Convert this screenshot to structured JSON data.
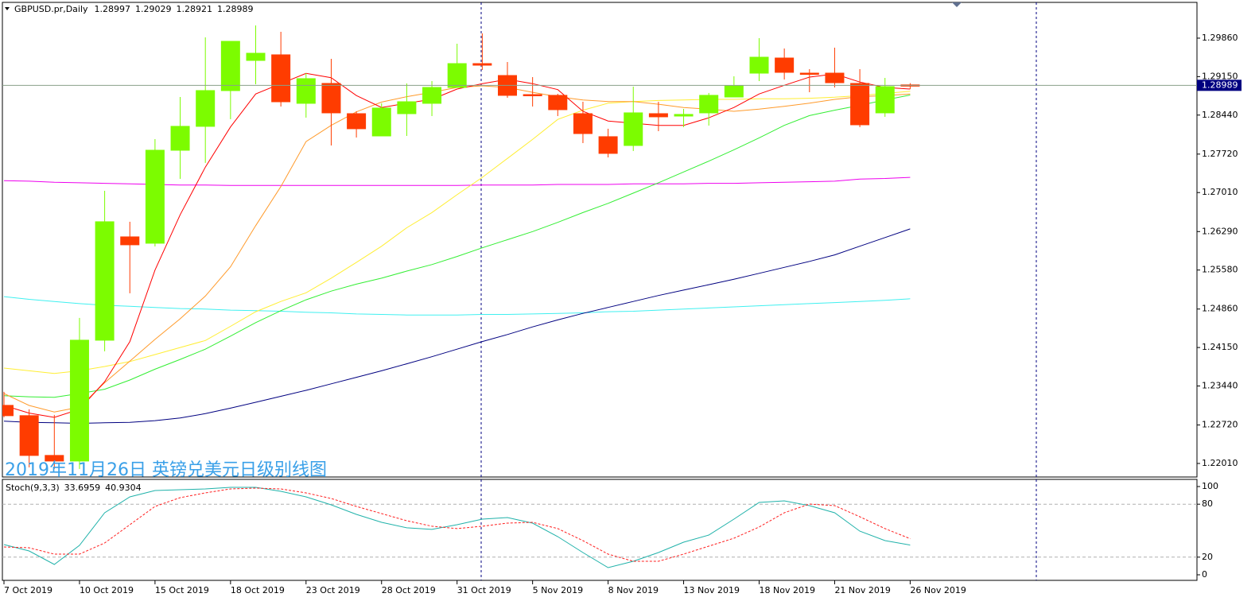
{
  "chart_data": [
    {
      "type": "candlestick",
      "title": "GBPUSD.pr,Daily",
      "annotation": "2019年11月26日 英镑兑美元日级别线图",
      "categories": [
        "7 Oct 2019",
        null,
        null,
        "10 Oct 2019",
        null,
        null,
        "15 Oct 2019",
        null,
        null,
        "18 Oct 2019",
        null,
        null,
        "23 Oct 2019",
        null,
        null,
        "28 Oct 2019",
        null,
        null,
        "31 Oct 2019",
        null,
        null,
        "5 Nov 2019",
        null,
        null,
        "8 Nov 2019",
        null,
        null,
        "13 Nov 2019",
        null,
        null,
        "18 Nov 2019",
        null,
        null,
        "21 Nov 2019",
        null,
        null,
        "26 Nov 2019"
      ],
      "open": [
        1.23082,
        1.22892,
        1.22158,
        1.22055,
        1.24285,
        1.26192,
        1.26075,
        1.27791,
        1.28232,
        1.28892,
        1.29449,
        1.29552,
        1.28657,
        1.29024,
        1.28466,
        1.28055,
        1.28466,
        1.28657,
        1.2895,
        1.2939,
        1.2917,
        1.28818,
        1.28804,
        1.28466,
        1.28041,
        1.27879,
        1.28466,
        1.28422,
        1.28481,
        1.28774,
        1.29214,
        1.29493,
        1.29214,
        1.29214,
        1.29024,
        1.28481,
        1.28997
      ],
      "high": [
        1.23332,
        1.23009,
        1.22906,
        1.24696,
        1.27043,
        1.26471,
        1.27997,
        1.28774,
        1.29874,
        1.29801,
        1.30095,
        1.29977,
        1.29214,
        1.29478,
        1.2851,
        1.28657,
        1.29024,
        1.29068,
        1.29757,
        1.29948,
        1.2942,
        1.29141,
        1.28833,
        1.28686,
        1.28188,
        1.28965,
        1.28686,
        1.28554,
        1.28848,
        1.29156,
        1.2986,
        1.29669,
        1.29288,
        1.29684,
        1.29288,
        1.29126,
        1.29029
      ],
      "low": [
        1.22862,
        1.21938,
        1.21909,
        1.21909,
        1.2408,
        1.25151,
        1.26016,
        1.27263,
        1.27557,
        1.28364,
        1.29009,
        1.28598,
        1.28393,
        1.27879,
        1.28026,
        1.28055,
        1.28055,
        1.28422,
        1.2895,
        1.29273,
        1.2876,
        1.28598,
        1.28422,
        1.27923,
        1.27659,
        1.27777,
        1.28143,
        1.28217,
        1.28246,
        1.28774,
        1.29068,
        1.29097,
        1.28862,
        1.2895,
        1.28217,
        1.28408,
        1.28921
      ],
      "close": [
        1.22892,
        1.22158,
        1.22055,
        1.24285,
        1.26471,
        1.26046,
        1.27791,
        1.28232,
        1.28892,
        1.29801,
        1.29581,
        1.28686,
        1.29112,
        1.28481,
        1.28188,
        1.28569,
        1.28686,
        1.2895,
        1.2939,
        1.29361,
        1.28804,
        1.28804,
        1.2854,
        1.28099,
        1.27733,
        1.28481,
        1.28408,
        1.28452,
        1.28804,
        1.2898,
        1.29508,
        1.29229,
        1.2921,
        1.29038,
        1.28261,
        1.28965,
        1.28989
      ],
      "up_color": "#7cfc00",
      "down_color": "#ff3c00",
      "series": [
        {
          "color": "#ee00ee",
          "values": [
            1.2723,
            1.2722,
            1.272,
            1.2719,
            1.2718,
            1.2717,
            1.2716,
            1.2715,
            1.2715,
            1.2714,
            1.2714,
            1.2714,
            1.2714,
            1.2714,
            1.2714,
            1.2714,
            1.2714,
            1.2714,
            1.2714,
            1.2715,
            1.2715,
            1.2715,
            1.2716,
            1.2716,
            1.2716,
            1.2717,
            1.2717,
            1.2717,
            1.2718,
            1.2718,
            1.2719,
            1.272,
            1.2721,
            1.2722,
            1.2726,
            1.2727,
            1.2729
          ]
        },
        {
          "color": "#40f0f0",
          "values": [
            1.2509,
            1.2504,
            1.25,
            1.2496,
            1.2493,
            1.2491,
            1.2489,
            1.2487,
            1.2486,
            1.2484,
            1.2483,
            1.2482,
            1.248,
            1.2479,
            1.2477,
            1.2476,
            1.2475,
            1.2475,
            1.2475,
            1.2476,
            1.2476,
            1.2477,
            1.2478,
            1.2479,
            1.2481,
            1.2482,
            1.2484,
            1.2486,
            1.2488,
            1.249,
            1.2492,
            1.2494,
            1.2496,
            1.2498,
            1.25,
            1.2502,
            1.2505
          ]
        },
        {
          "color": "#000080",
          "values": [
            1.2279,
            1.2277,
            1.2276,
            1.2275,
            1.2276,
            1.2277,
            1.228,
            1.2285,
            1.2293,
            1.2303,
            1.2314,
            1.2325,
            1.2336,
            1.2348,
            1.236,
            1.2372,
            1.2385,
            1.2398,
            1.2412,
            1.2426,
            1.2439,
            1.2453,
            1.2466,
            1.2478,
            1.2489,
            1.25,
            1.2511,
            1.2521,
            1.2531,
            1.2541,
            1.2552,
            1.2563,
            1.2574,
            1.2586,
            1.2602,
            1.2618,
            1.2634
          ]
        },
        {
          "color": "#33ee33",
          "values": [
            1.2326,
            1.2324,
            1.2323,
            1.233,
            1.2338,
            1.2355,
            1.2375,
            1.2393,
            1.2412,
            1.2436,
            1.2461,
            1.2483,
            1.2503,
            1.2519,
            1.2532,
            1.2543,
            1.2556,
            1.2568,
            1.2583,
            1.2599,
            1.2614,
            1.2629,
            1.2646,
            1.2664,
            1.2681,
            1.27,
            1.2719,
            1.2739,
            1.2759,
            1.278,
            1.2802,
            1.2825,
            1.2843,
            1.2853,
            1.2862,
            1.2872,
            1.2881
          ]
        },
        {
          "color": "#ffee33",
          "values": [
            1.2377,
            1.2372,
            1.2367,
            1.2372,
            1.238,
            1.2389,
            1.2402,
            1.2415,
            1.2428,
            1.2454,
            1.2481,
            1.25,
            1.2516,
            1.2543,
            1.2572,
            1.2602,
            1.2636,
            1.2664,
            1.2697,
            1.2729,
            1.2764,
            1.2799,
            1.2836,
            1.2853,
            1.2866,
            1.2869,
            1.2871,
            1.2872,
            1.2873,
            1.2873,
            1.2874,
            1.2874,
            1.2875,
            1.2877,
            1.288,
            1.2884,
            1.2888
          ]
        },
        {
          "color": "#ff9a2a",
          "values": [
            1.233,
            1.2308,
            1.2296,
            1.2305,
            1.235,
            1.239,
            1.243,
            1.2468,
            1.251,
            1.2564,
            1.264,
            1.2712,
            1.2795,
            1.2825,
            1.285,
            1.2868,
            1.2878,
            1.2886,
            1.2895,
            1.2898,
            1.2895,
            1.2886,
            1.2878,
            1.2872,
            1.2869,
            1.2869,
            1.2864,
            1.2858,
            1.2855,
            1.2851,
            1.2855,
            1.286,
            1.2866,
            1.2873,
            1.2878,
            1.288,
            1.2883
          ]
        },
        {
          "color": "#ff0000",
          "values": [
            1.2308,
            1.2294,
            1.2286,
            1.2301,
            1.2352,
            1.2426,
            1.2558,
            1.266,
            1.2748,
            1.2822,
            1.2883,
            1.2902,
            1.2921,
            1.2913,
            1.288,
            1.2858,
            1.2866,
            1.2873,
            1.2892,
            1.2902,
            1.291,
            1.2902,
            1.2891,
            1.2851,
            1.2833,
            1.2829,
            1.2825,
            1.2825,
            1.2839,
            1.2858,
            1.2883,
            1.2899,
            1.2914,
            1.292,
            1.2905,
            1.2895,
            1.2892
          ]
        }
      ],
      "ylim": [
        1.2176,
        1.3052
      ],
      "yticks": [
        {
          "value": 1.2201,
          "label": "1.22010"
        },
        {
          "value": 1.2272,
          "label": "1.22720"
        },
        {
          "value": 1.2344,
          "label": "1.23440"
        },
        {
          "value": 1.2415,
          "label": "1.24150"
        },
        {
          "value": 1.2486,
          "label": "1.24860"
        },
        {
          "value": 1.2558,
          "label": "1.25580"
        },
        {
          "value": 1.2629,
          "label": "1.26290"
        },
        {
          "value": 1.2701,
          "label": "1.27010"
        },
        {
          "value": 1.2772,
          "label": "1.27720"
        },
        {
          "value": 1.2844,
          "label": "1.28440"
        },
        {
          "value": 1.2915,
          "label": "1.29150"
        },
        {
          "value": 1.2986,
          "label": "1.29860"
        }
      ]
    },
    {
      "type": "line",
      "title": "Stoch(9,3,3)",
      "series": [
        {
          "color": "#20b2aa",
          "dashed": false,
          "values": [
            34.2,
            27.0,
            11.7,
            33.3,
            70.3,
            88.3,
            95.5,
            96.4,
            97.3,
            99.1,
            99.1,
            94.6,
            88.3,
            79.3,
            68.5,
            59.5,
            53.2,
            51.4,
            56.8,
            63.1,
            64.9,
            58.6,
            43.2,
            25.2,
            8.1,
            15.3,
            25.2,
            36.9,
            45.0,
            63.1,
            82.0,
            83.8,
            78.4,
            70.3,
            49.5,
            38.7,
            33.6959
          ]
        },
        {
          "color": "#ff2020",
          "dashed": true,
          "values": [
            31.5,
            30.6,
            23.4,
            23.4,
            36.0,
            56.8,
            77.5,
            87.4,
            92.8,
            97.3,
            98.2,
            97.3,
            92.8,
            86.5,
            77.5,
            69.4,
            61.3,
            55.0,
            52.3,
            55.0,
            58.6,
            59.5,
            52.3,
            38.7,
            23.4,
            15.3,
            15.3,
            23.4,
            32.4,
            41.4,
            54.1,
            70.3,
            80.2,
            78.4,
            65.8,
            52.3,
            40.9304
          ]
        }
      ],
      "ylim": [
        -6.3,
        108.1
      ],
      "yticks": [
        100,
        80,
        20,
        0
      ],
      "levels": [
        80,
        20
      ]
    }
  ]
}
